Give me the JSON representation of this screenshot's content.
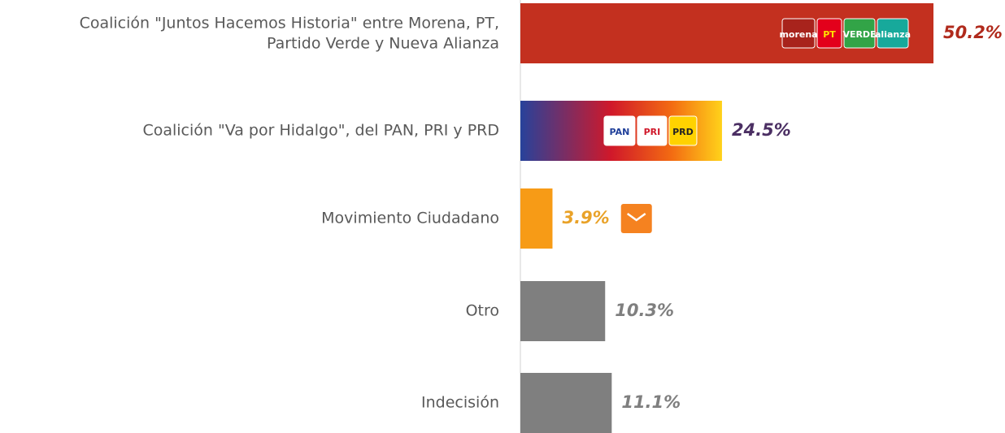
{
  "chart_data": {
    "type": "barh",
    "categories": [
      "Coalición \"Juntos Hacemos Historia\" entre Morena, PT,\nPartido Verde y Nueva Alianza",
      "Coalición \"Va por Hidalgo\", del PAN, PRI y PRD",
      "Movimiento Ciudadano",
      "Otro",
      "Indecisión"
    ],
    "values": [
      50.2,
      24.5,
      3.9,
      10.3,
      11.1
    ],
    "value_labels": [
      "50.2%",
      "24.5%",
      "3.9%",
      "10.3%",
      "11.1%"
    ],
    "colors": [
      "#c3301f",
      "gradient",
      "#f79b16",
      "#7f7f7f",
      "#7f7f7f"
    ],
    "label_colors": [
      "#b02a1c",
      "#4b2f63",
      "#e9a228",
      "#7f7f7f",
      "#7f7f7f"
    ],
    "logos": [
      [
        "morena",
        "PT",
        "VERDE",
        "alianza"
      ],
      [
        "PAN",
        "PRI",
        "PRD"
      ],
      [],
      [],
      []
    ],
    "xlim": [
      0,
      55
    ]
  }
}
